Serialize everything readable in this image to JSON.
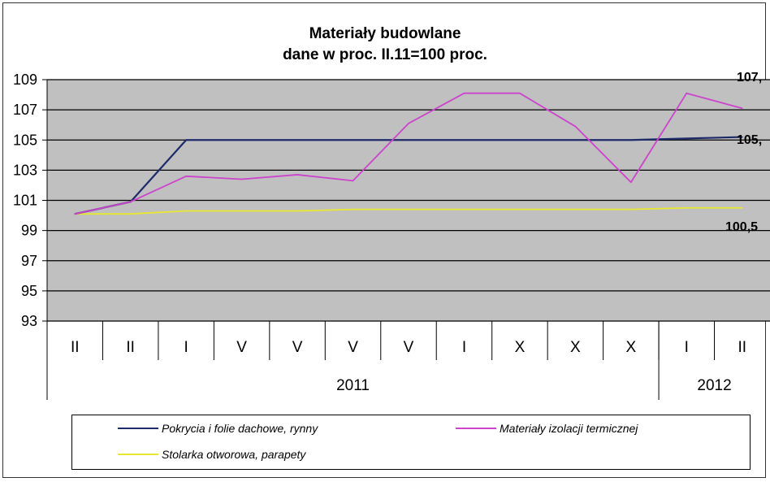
{
  "chart_data": {
    "type": "line",
    "title": "Materiały budowlane",
    "subtitle": "dane w proc. II.11=100 proc.",
    "ylim": [
      93,
      109
    ],
    "yticks": [
      "109",
      "107",
      "105",
      "103",
      "101",
      "99",
      "97",
      "95",
      "93"
    ],
    "grid": true,
    "categories": [
      "II",
      "II",
      "I",
      "V",
      "V",
      "V",
      "V",
      "I",
      "X",
      "X",
      "X",
      "I",
      "II"
    ],
    "year_groups": [
      {
        "label": "2011",
        "span": 11
      },
      {
        "label": "2012",
        "span": 2
      }
    ],
    "series": [
      {
        "name": "Pokrycia i folie dachowe, rynny",
        "color": "#1f2a6b",
        "values": [
          100.1,
          100.9,
          105.0,
          105.0,
          105.0,
          105.0,
          105.0,
          105.0,
          105.0,
          105.0,
          105.0,
          105.1,
          105.2
        ],
        "end_label": "105,"
      },
      {
        "name": "Materiały izolacji termicznej",
        "color": "#cc44cc",
        "values": [
          100.1,
          100.9,
          102.6,
          102.4,
          102.7,
          102.3,
          106.1,
          108.1,
          108.1,
          105.9,
          102.2,
          108.1,
          107.1
        ],
        "end_label": "107,"
      },
      {
        "name": "Stolarka otworowa, parapety",
        "color": "#e8e830",
        "values": [
          100.1,
          100.1,
          100.3,
          100.3,
          100.3,
          100.4,
          100.4,
          100.4,
          100.4,
          100.4,
          100.4,
          100.5,
          100.5
        ],
        "end_label": "100,5"
      }
    ],
    "legend_position": "bottom",
    "plot_background": "#c0c0c0"
  }
}
